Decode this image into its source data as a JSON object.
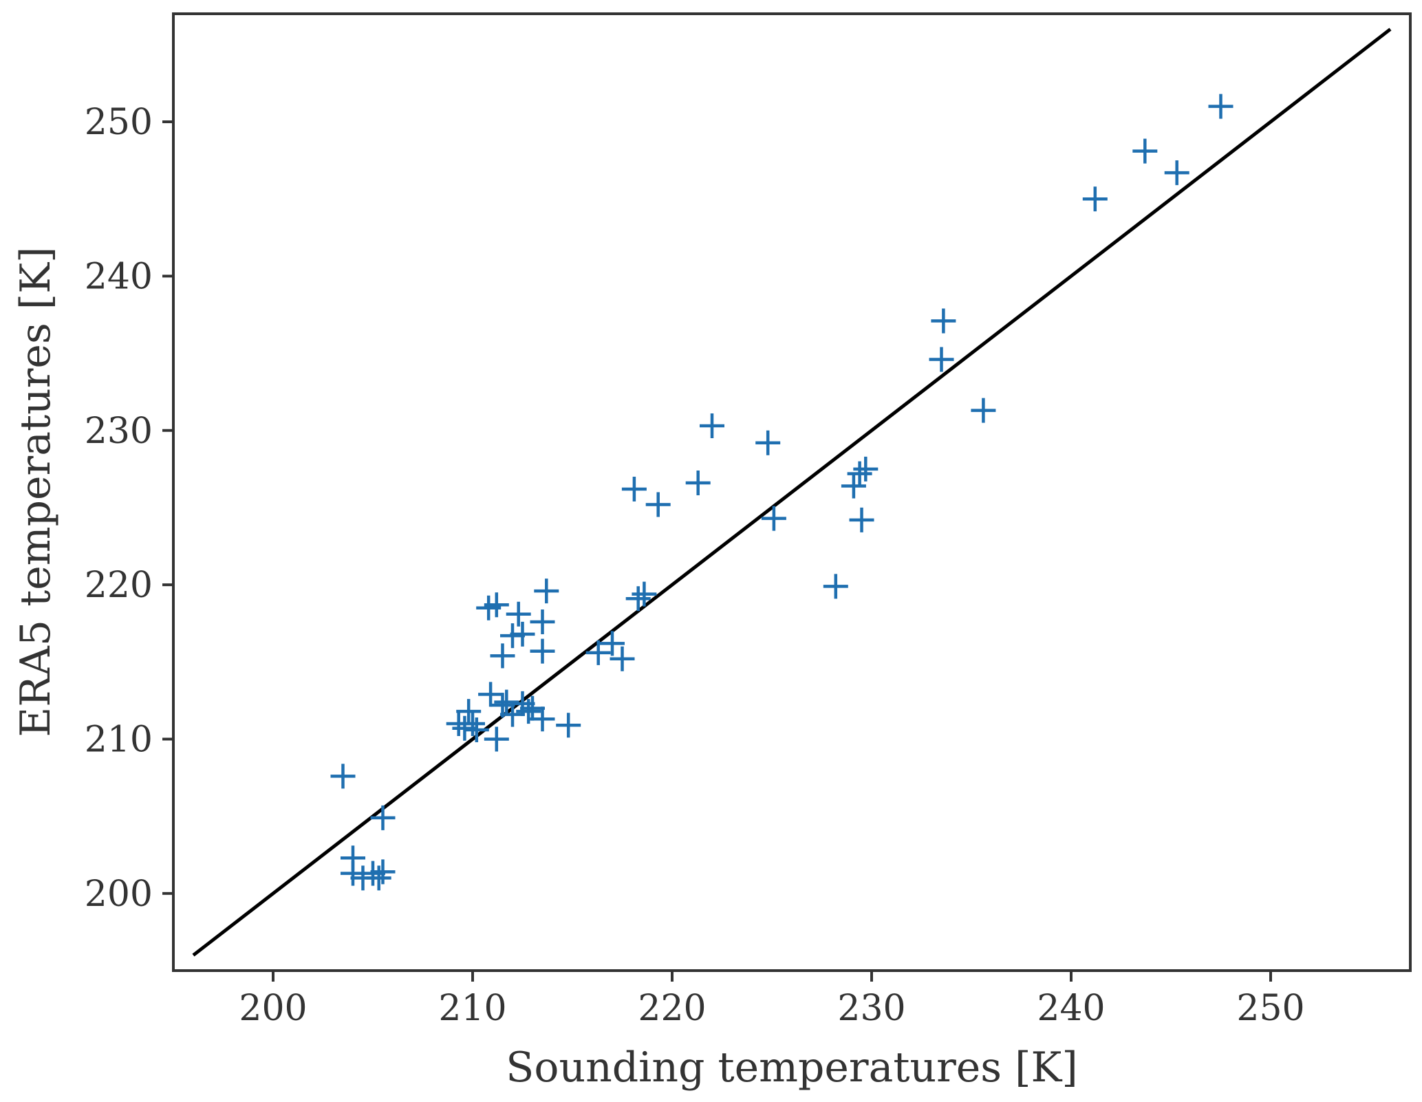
{
  "chart_data": {
    "type": "scatter",
    "title": "",
    "xlabel": "Sounding temperatures [K]",
    "ylabel": "ERA5 temperatures [K]",
    "xlim": [
      195,
      257
    ],
    "ylim": [
      195,
      257
    ],
    "xticks": [
      200,
      210,
      220,
      230,
      240,
      250
    ],
    "yticks": [
      200,
      210,
      220,
      230,
      240,
      250
    ],
    "grid": false,
    "legend": "none",
    "marker": "plus",
    "colors": {
      "points": "#1f6fb0",
      "line": "#000000",
      "axes": "#333333"
    },
    "reference_line": {
      "label": "",
      "x": [
        196,
        256
      ],
      "y": [
        196,
        256
      ]
    },
    "points": [
      [
        203.5,
        207.6
      ],
      [
        204.0,
        202.3
      ],
      [
        204.0,
        201.3
      ],
      [
        204.5,
        201.0
      ],
      [
        205.0,
        201.3
      ],
      [
        205.3,
        201.0
      ],
      [
        205.5,
        201.4
      ],
      [
        205.5,
        204.9
      ],
      [
        209.3,
        211.0
      ],
      [
        209.6,
        210.7
      ],
      [
        209.8,
        211.8
      ],
      [
        210.0,
        211.0
      ],
      [
        210.2,
        210.6
      ],
      [
        210.8,
        218.5
      ],
      [
        210.9,
        212.9
      ],
      [
        211.2,
        218.7
      ],
      [
        211.2,
        210.0
      ],
      [
        211.5,
        212.2
      ],
      [
        211.5,
        215.4
      ],
      [
        211.7,
        212.4
      ],
      [
        212.0,
        211.6
      ],
      [
        212.0,
        216.7
      ],
      [
        212.3,
        218.1
      ],
      [
        212.5,
        212.3
      ],
      [
        212.5,
        216.8
      ],
      [
        212.8,
        211.8
      ],
      [
        213.0,
        212.0
      ],
      [
        213.5,
        217.6
      ],
      [
        213.5,
        215.7
      ],
      [
        213.5,
        211.3
      ],
      [
        213.7,
        219.6
      ],
      [
        214.8,
        210.9
      ],
      [
        216.3,
        215.6
      ],
      [
        217.0,
        216.2
      ],
      [
        217.5,
        215.2
      ],
      [
        218.1,
        226.2
      ],
      [
        218.3,
        219.1
      ],
      [
        218.6,
        219.4
      ],
      [
        219.3,
        225.2
      ],
      [
        221.3,
        226.6
      ],
      [
        222.0,
        230.3
      ],
      [
        224.8,
        229.2
      ],
      [
        225.1,
        224.3
      ],
      [
        228.2,
        219.9
      ],
      [
        229.1,
        226.4
      ],
      [
        229.4,
        227.2
      ],
      [
        229.5,
        224.2
      ],
      [
        229.7,
        227.5
      ],
      [
        233.5,
        234.6
      ],
      [
        233.6,
        237.1
      ],
      [
        235.6,
        231.3
      ],
      [
        241.2,
        245.0
      ],
      [
        243.7,
        248.1
      ],
      [
        245.3,
        246.7
      ],
      [
        247.5,
        251.0
      ]
    ]
  }
}
